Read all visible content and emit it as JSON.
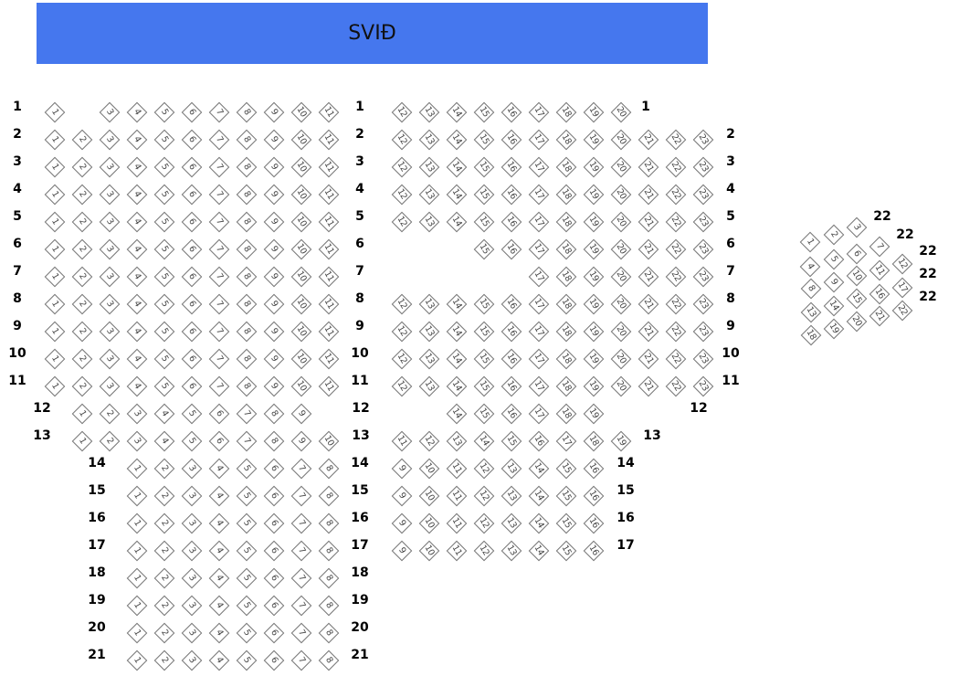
{
  "stage": {
    "label": "SVIÐ",
    "color": "#4577ee"
  },
  "left_block": [
    {
      "row": "1",
      "seats": [
        1,
        3,
        4,
        5,
        6,
        7,
        8,
        9,
        10,
        11
      ]
    },
    {
      "row": "2",
      "seats": [
        1,
        2,
        3,
        4,
        5,
        6,
        7,
        8,
        9,
        10,
        11
      ]
    },
    {
      "row": "3",
      "seats": [
        1,
        2,
        3,
        4,
        5,
        6,
        7,
        8,
        9,
        10,
        11
      ]
    },
    {
      "row": "4",
      "seats": [
        1,
        2,
        3,
        4,
        5,
        6,
        7,
        8,
        9,
        10,
        11
      ]
    },
    {
      "row": "5",
      "seats": [
        1,
        2,
        3,
        4,
        5,
        6,
        7,
        8,
        9,
        10,
        11
      ]
    },
    {
      "row": "6",
      "seats": [
        1,
        2,
        3,
        4,
        5,
        6,
        7,
        8,
        9,
        10,
        11
      ]
    },
    {
      "row": "7",
      "seats": [
        1,
        2,
        3,
        4,
        5,
        6,
        7,
        8,
        9,
        10,
        11
      ]
    },
    {
      "row": "8",
      "seats": [
        1,
        2,
        3,
        4,
        5,
        6,
        7,
        8,
        9,
        10,
        11
      ]
    },
    {
      "row": "9",
      "seats": [
        1,
        2,
        3,
        4,
        5,
        6,
        7,
        8,
        9,
        10,
        11
      ]
    },
    {
      "row": "10",
      "seats": [
        1,
        2,
        3,
        4,
        5,
        6,
        7,
        8,
        9,
        10,
        11
      ]
    },
    {
      "row": "11",
      "seats": [
        1,
        2,
        3,
        4,
        5,
        6,
        7,
        8,
        9,
        10,
        11
      ]
    },
    {
      "row": "12",
      "seats": [
        1,
        2,
        3,
        4,
        5,
        6,
        7,
        8,
        9
      ]
    },
    {
      "row": "13",
      "seats": [
        1,
        2,
        3,
        4,
        5,
        6,
        7,
        8,
        9,
        10
      ]
    },
    {
      "row": "14",
      "seats": [
        1,
        2,
        3,
        4,
        5,
        6,
        7,
        8
      ]
    },
    {
      "row": "15",
      "seats": [
        1,
        2,
        3,
        4,
        5,
        6,
        7,
        8
      ]
    },
    {
      "row": "16",
      "seats": [
        1,
        2,
        3,
        4,
        5,
        6,
        7,
        8
      ]
    },
    {
      "row": "17",
      "seats": [
        1,
        2,
        3,
        4,
        5,
        6,
        7,
        8
      ]
    },
    {
      "row": "18",
      "seats": [
        1,
        2,
        3,
        4,
        5,
        6,
        7,
        8
      ]
    },
    {
      "row": "19",
      "seats": [
        1,
        2,
        3,
        4,
        5,
        6,
        7,
        8
      ]
    },
    {
      "row": "20",
      "seats": [
        1,
        2,
        3,
        4,
        5,
        6,
        7,
        8
      ]
    },
    {
      "row": "21",
      "seats": [
        1,
        2,
        3,
        4,
        5,
        6,
        7,
        8
      ]
    }
  ],
  "right_block": [
    {
      "row": "1",
      "seats": [
        12,
        13,
        14,
        15,
        16,
        17,
        18,
        19,
        20
      ]
    },
    {
      "row": "2",
      "seats": [
        12,
        13,
        14,
        15,
        16,
        17,
        18,
        19,
        20,
        21,
        22,
        23
      ]
    },
    {
      "row": "3",
      "seats": [
        12,
        13,
        14,
        15,
        16,
        17,
        18,
        19,
        20,
        21,
        22,
        23
      ]
    },
    {
      "row": "4",
      "seats": [
        12,
        13,
        14,
        15,
        16,
        17,
        18,
        19,
        20,
        21,
        22,
        23
      ]
    },
    {
      "row": "5",
      "seats": [
        12,
        13,
        14,
        15,
        16,
        17,
        18,
        19,
        20,
        21,
        22,
        23
      ]
    },
    {
      "row": "6",
      "seats": [
        15,
        16,
        17,
        18,
        19,
        20,
        21,
        22,
        23
      ]
    },
    {
      "row": "7",
      "seats": [
        17,
        18,
        19,
        20,
        21,
        22,
        23
      ]
    },
    {
      "row": "8",
      "seats": [
        12,
        13,
        14,
        15,
        16,
        17,
        18,
        19,
        20,
        21,
        22,
        23
      ]
    },
    {
      "row": "9",
      "seats": [
        12,
        13,
        14,
        15,
        16,
        17,
        18,
        19,
        20,
        21,
        22,
        23
      ]
    },
    {
      "row": "10",
      "seats": [
        12,
        13,
        14,
        15,
        16,
        17,
        18,
        19,
        20,
        21,
        22,
        23
      ]
    },
    {
      "row": "11",
      "seats": [
        12,
        13,
        14,
        15,
        16,
        17,
        18,
        19,
        20,
        21,
        22,
        23
      ]
    },
    {
      "row": "12",
      "seats": [
        14,
        15,
        16,
        17,
        18,
        19
      ]
    },
    {
      "row": "13",
      "seats": [
        11,
        12,
        13,
        14,
        15,
        16,
        17,
        18,
        19
      ]
    },
    {
      "row": "14",
      "seats": [
        9,
        10,
        11,
        12,
        13,
        14,
        15,
        16
      ]
    },
    {
      "row": "15",
      "seats": [
        9,
        10,
        11,
        12,
        13,
        14,
        15,
        16
      ]
    },
    {
      "row": "16",
      "seats": [
        9,
        10,
        11,
        12,
        13,
        14,
        15,
        16
      ]
    },
    {
      "row": "17",
      "seats": [
        9,
        10,
        11,
        12,
        13,
        14,
        15,
        16
      ]
    }
  ],
  "side_box": {
    "seats": [
      1,
      2,
      3,
      4,
      5,
      6,
      7,
      8,
      9,
      10,
      11,
      12,
      13,
      14,
      15,
      16,
      17,
      18,
      19,
      20,
      21,
      22
    ],
    "row_labels": [
      "22",
      "22",
      "22",
      "22",
      "22"
    ]
  }
}
